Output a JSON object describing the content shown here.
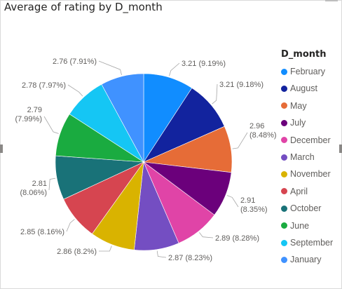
{
  "title": "Average of rating by D_month",
  "chart_data": {
    "type": "pie",
    "title": "Average of rating by D_month",
    "legend_title": "D_month",
    "legend_position": "right",
    "categories": [
      "February",
      "August",
      "May",
      "July",
      "December",
      "March",
      "November",
      "April",
      "October",
      "June",
      "September",
      "January"
    ],
    "values": [
      3.21,
      3.21,
      2.96,
      2.91,
      2.89,
      2.87,
      2.86,
      2.85,
      2.81,
      2.79,
      2.78,
      2.76
    ],
    "percents": [
      "9.19%",
      "9.18%",
      "8.48%",
      "8.35%",
      "8.28%",
      "8.23%",
      "8.2%",
      "8.16%",
      "8.06%",
      "7.99%",
      "7.97%",
      "7.91%"
    ],
    "data_labels": [
      "3.21 (9.19%)",
      "3.21 (9.18%)",
      "2.96 (8.48%)",
      "2.91 (8.35%)",
      "2.89 (8.28%)",
      "2.87 (8.23%)",
      "2.86 (8.2%)",
      "2.85 (8.16%)",
      "2.81 (8.06%)",
      "2.79 (7.99%)",
      "2.78 (7.97%)",
      "2.76 (7.91%)"
    ],
    "colors": [
      "#118DFF",
      "#12239E",
      "#E66C37",
      "#6B007B",
      "#E044A7",
      "#744EC2",
      "#D9B300",
      "#D64550",
      "#197278",
      "#1AAB40",
      "#15C6F4",
      "#4092FF"
    ]
  }
}
